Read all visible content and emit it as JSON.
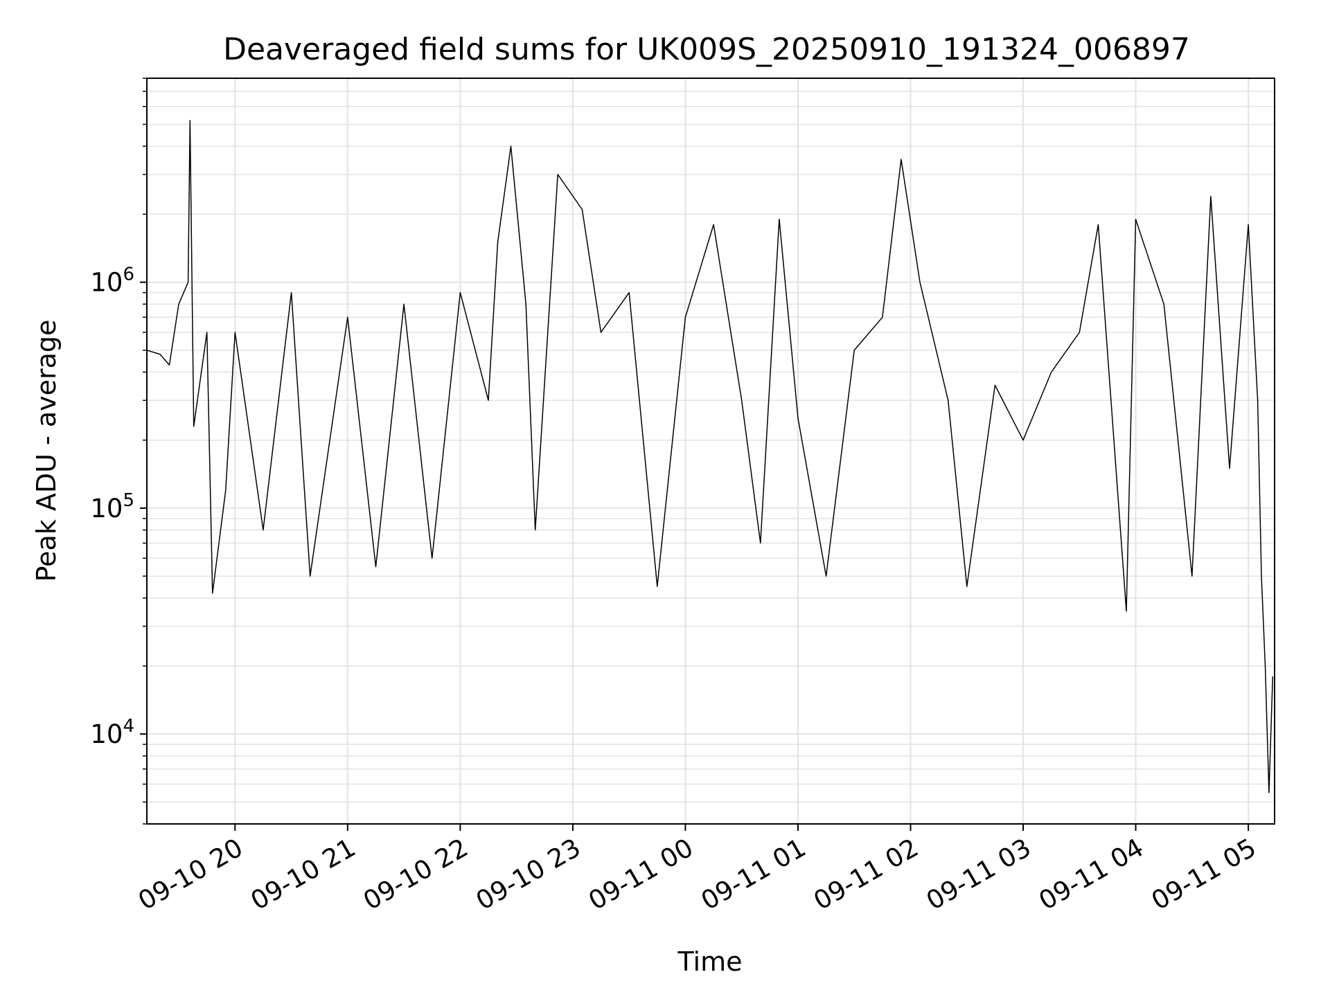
{
  "chart_data": {
    "type": "line",
    "title": "Deaveraged field sums for UK009S_20250910_191324_006897",
    "xlabel": "Time",
    "ylabel": "Peak ADU - average",
    "yscale": "log",
    "grid": true,
    "line_color": "#000000",
    "xlim": [
      "2025-09-10 19:13",
      "2025-09-11 05:14"
    ],
    "ylim": [
      4000,
      8000000
    ],
    "x_ticks": [
      {
        "t": "2025-09-10 20:00",
        "label": "09-10 20"
      },
      {
        "t": "2025-09-10 21:00",
        "label": "09-10 21"
      },
      {
        "t": "2025-09-10 22:00",
        "label": "09-10 22"
      },
      {
        "t": "2025-09-10 23:00",
        "label": "09-10 23"
      },
      {
        "t": "2025-09-11 00:00",
        "label": "09-11 00"
      },
      {
        "t": "2025-09-11 01:00",
        "label": "09-11 01"
      },
      {
        "t": "2025-09-11 02:00",
        "label": "09-11 02"
      },
      {
        "t": "2025-09-11 03:00",
        "label": "09-11 03"
      },
      {
        "t": "2025-09-11 04:00",
        "label": "09-11 04"
      },
      {
        "t": "2025-09-11 05:00",
        "label": "09-11 05"
      }
    ],
    "y_ticks": [
      {
        "value": 10000,
        "base": "10",
        "exp": "4"
      },
      {
        "value": 100000,
        "base": "10",
        "exp": "5"
      },
      {
        "value": 1000000,
        "base": "10",
        "exp": "6"
      }
    ],
    "points": [
      [
        "2025-09-10 19:13",
        500000
      ],
      [
        "2025-09-10 19:20",
        480000
      ],
      [
        "2025-09-10 19:25",
        430000
      ],
      [
        "2025-09-10 19:30",
        800000
      ],
      [
        "2025-09-10 19:35",
        1000000
      ],
      [
        "2025-09-10 19:36",
        5200000
      ],
      [
        "2025-09-10 19:38",
        230000
      ],
      [
        "2025-09-10 19:45",
        600000
      ],
      [
        "2025-09-10 19:48",
        42000
      ],
      [
        "2025-09-10 19:55",
        120000
      ],
      [
        "2025-09-10 20:00",
        600000
      ],
      [
        "2025-09-10 20:15",
        80000
      ],
      [
        "2025-09-10 20:30",
        900000
      ],
      [
        "2025-09-10 20:40",
        50000
      ],
      [
        "2025-09-10 21:00",
        700000
      ],
      [
        "2025-09-10 21:15",
        55000
      ],
      [
        "2025-09-10 21:30",
        800000
      ],
      [
        "2025-09-10 21:45",
        60000
      ],
      [
        "2025-09-10 22:00",
        900000
      ],
      [
        "2025-09-10 22:15",
        300000
      ],
      [
        "2025-09-10 22:20",
        1500000
      ],
      [
        "2025-09-10 22:27",
        4000000
      ],
      [
        "2025-09-10 22:35",
        800000
      ],
      [
        "2025-09-10 22:40",
        80000
      ],
      [
        "2025-09-10 22:52",
        3000000
      ],
      [
        "2025-09-10 23:05",
        2100000
      ],
      [
        "2025-09-10 23:15",
        600000
      ],
      [
        "2025-09-10 23:30",
        900000
      ],
      [
        "2025-09-10 23:45",
        45000
      ],
      [
        "2025-09-11 00:00",
        700000
      ],
      [
        "2025-09-11 00:15",
        1800000
      ],
      [
        "2025-09-11 00:30",
        300000
      ],
      [
        "2025-09-11 00:40",
        70000
      ],
      [
        "2025-09-11 00:50",
        1900000
      ],
      [
        "2025-09-11 01:00",
        250000
      ],
      [
        "2025-09-11 01:15",
        50000
      ],
      [
        "2025-09-11 01:30",
        500000
      ],
      [
        "2025-09-11 01:45",
        700000
      ],
      [
        "2025-09-11 01:55",
        3500000
      ],
      [
        "2025-09-11 02:05",
        1000000
      ],
      [
        "2025-09-11 02:20",
        300000
      ],
      [
        "2025-09-11 02:30",
        45000
      ],
      [
        "2025-09-11 02:45",
        350000
      ],
      [
        "2025-09-11 03:00",
        200000
      ],
      [
        "2025-09-11 03:15",
        400000
      ],
      [
        "2025-09-11 03:30",
        600000
      ],
      [
        "2025-09-11 03:40",
        1800000
      ],
      [
        "2025-09-11 03:55",
        35000
      ],
      [
        "2025-09-11 04:00",
        1900000
      ],
      [
        "2025-09-11 04:15",
        800000
      ],
      [
        "2025-09-11 04:30",
        50000
      ],
      [
        "2025-09-11 04:40",
        2400000
      ],
      [
        "2025-09-11 04:50",
        150000
      ],
      [
        "2025-09-11 05:00",
        1800000
      ],
      [
        "2025-09-11 05:05",
        300000
      ],
      [
        "2025-09-11 05:07",
        50000
      ],
      [
        "2025-09-11 05:09",
        20000
      ],
      [
        "2025-09-11 05:11",
        5500
      ],
      [
        "2025-09-11 05:13",
        18000
      ]
    ]
  }
}
